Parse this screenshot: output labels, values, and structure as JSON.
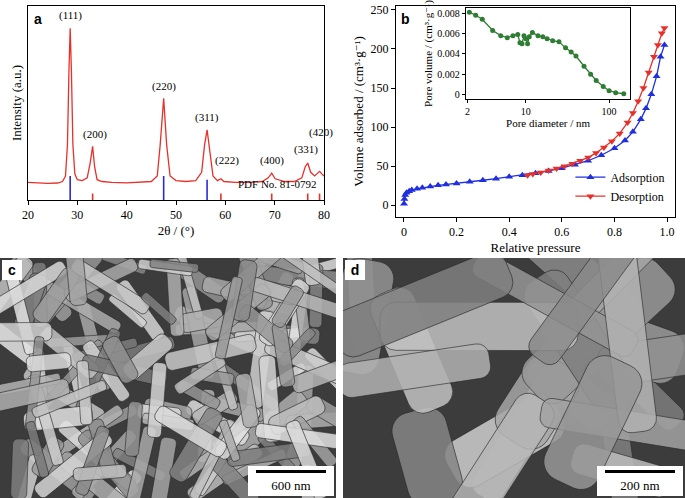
{
  "chart_data": [
    {
      "type": "line",
      "panel_label": "a",
      "x_label": "2θ / (°)",
      "y_label": "Intensity (a.u.)",
      "xlim": [
        20,
        80
      ],
      "xticks": [
        20,
        30,
        40,
        50,
        60,
        70,
        80
      ],
      "ylim": [
        0,
        105
      ],
      "tick_labels": "x",
      "grid": false,
      "series": [
        {
          "type": "line",
          "color": "#e8302a",
          "x": [
            20,
            22,
            24,
            26,
            27,
            27.6,
            28,
            28.3,
            28.55,
            28.8,
            29.1,
            29.5,
            30,
            31,
            32,
            32.6,
            33.1,
            33.5,
            34,
            35,
            37,
            40,
            43,
            45,
            46.2,
            46.8,
            47.5,
            48.1,
            48.8,
            50,
            52,
            54,
            55.2,
            55.8,
            56.3,
            56.9,
            57.5,
            58.4,
            59.1,
            59.7,
            62,
            65,
            67.5,
            68.7,
            69.4,
            70.1,
            72,
            74,
            75.5,
            76.2,
            76.7,
            77.3,
            78.1,
            78.5,
            79.1,
            79.6,
            80
          ],
          "values": [
            9.5,
            9.2,
            9.0,
            9.2,
            10,
            13,
            30,
            70,
            93,
            70,
            30,
            14,
            11,
            10.5,
            12,
            20,
            29,
            18,
            11,
            10,
            9.5,
            9.3,
            9.5,
            10,
            13,
            30,
            55,
            30,
            13,
            10.5,
            10,
            10.5,
            15,
            30,
            38,
            25,
            13,
            10.5,
            11.5,
            10,
            9.5,
            9.5,
            10,
            12,
            14.5,
            11.5,
            10,
            10,
            12,
            18,
            20,
            15,
            13,
            14,
            15.5,
            14,
            13
          ]
        },
        {
          "type": "stick",
          "x": [
            28.55,
            33.1,
            47.5,
            56.3,
            59.1,
            69.4,
            76.7,
            79.1
          ],
          "values": [
            13,
            3.5,
            13,
            11,
            3.5,
            3.5,
            3.5,
            3.5
          ],
          "colors": [
            "#2b2bd9",
            "#e8302a",
            "#2b2bd9",
            "#2b2bd9",
            "#e8302a",
            "#e8302a",
            "#e8302a",
            "#e8302a"
          ]
        }
      ],
      "annotations": [
        {
          "text": "(111)",
          "x": 28.55,
          "y": 95.5
        },
        {
          "text": "(200)",
          "x": 33.6,
          "y": 31
        },
        {
          "text": "(220)",
          "x": 47.5,
          "y": 57
        },
        {
          "text": "(311)",
          "x": 56.3,
          "y": 40
        },
        {
          "text": "(222)",
          "x": 60.3,
          "y": 17
        },
        {
          "text": "(400)",
          "x": 69.4,
          "y": 17
        },
        {
          "text": "(331)",
          "x": 76.3,
          "y": 23
        },
        {
          "text": "(420)",
          "x": 79.3,
          "y": 32
        },
        {
          "text": "PDF No. 81-0792",
          "x": 70.5,
          "y": 4.5
        }
      ]
    },
    {
      "type": "line",
      "panel_label": "b",
      "x_label": "Relative pressure",
      "y_label": "Volume adsorbed / (cm³·g⁻¹)",
      "xlim": [
        -0.03,
        1.03
      ],
      "xticks": [
        0,
        0.2,
        0.4,
        0.6,
        0.8,
        {
          "value": 1,
          "label": "1.0"
        }
      ],
      "ylim": [
        -15,
        255
      ],
      "yticks": [
        0,
        50,
        100,
        150,
        200,
        250
      ],
      "grid": false,
      "legend": "lower right",
      "series": [
        {
          "name": "Adsorption",
          "color": "#1f2fe0",
          "marker": "triangle-up",
          "line_style": "solid",
          "x": [
            0.0005,
            0.002,
            0.005,
            0.01,
            0.02,
            0.03,
            0.05,
            0.07,
            0.1,
            0.13,
            0.16,
            0.2,
            0.25,
            0.3,
            0.35,
            0.4,
            0.45,
            0.5,
            0.55,
            0.6,
            0.65,
            0.7,
            0.75,
            0.8,
            0.84,
            0.87,
            0.9,
            0.92,
            0.94,
            0.96,
            0.975,
            0.99
          ],
          "values": [
            2,
            8,
            13,
            16,
            18,
            19.5,
            21,
            22.5,
            24,
            25.5,
            26.5,
            28,
            30,
            32,
            34,
            36.5,
            38.5,
            41,
            44,
            47.5,
            52,
            57,
            64,
            73,
            83,
            94,
            110,
            124,
            142,
            165,
            190,
            205
          ]
        },
        {
          "name": "Desorption",
          "color": "#e8302a",
          "marker": "triangle-down",
          "line_style": "solid",
          "x": [
            0.99,
            0.98,
            0.965,
            0.95,
            0.93,
            0.91,
            0.89,
            0.87,
            0.85,
            0.82,
            0.79,
            0.76,
            0.73,
            0.7,
            0.67,
            0.64,
            0.61,
            0.58,
            0.55,
            0.52,
            0.49,
            0.47
          ],
          "values": [
            227,
            220,
            205,
            190,
            170,
            150,
            133,
            118,
            106,
            92,
            82,
            74,
            67,
            61,
            57,
            53,
            50,
            47,
            44.5,
            42,
            40,
            38.5
          ]
        }
      ]
    },
    {
      "type": "line",
      "x_label": "Pore diameter / nm",
      "y_label": "Pore volume / (cm³·g⁻¹)",
      "log": "x",
      "xlim": [
        1.9,
        180
      ],
      "xticks": [
        2,
        10,
        100
      ],
      "ylim": [
        -0.0004,
        0.0085
      ],
      "yticks": [
        0,
        0.002,
        0.004,
        0.006,
        0.008
      ],
      "grid": false,
      "series": [
        {
          "color": "#2e7d32",
          "marker": "circle",
          "line_style": "solid",
          "x": [
            2.1,
            2.5,
            3,
            4,
            5,
            6,
            7,
            8,
            8.5,
            9,
            9.5,
            10,
            10.5,
            11,
            12,
            14,
            16,
            18,
            21,
            25,
            30,
            35,
            40,
            50,
            60,
            70,
            85,
            100,
            120,
            150
          ],
          "values": [
            0.0081,
            0.0078,
            0.0074,
            0.0063,
            0.0058,
            0.0056,
            0.0058,
            0.0059,
            0.0051,
            0.005,
            0.0058,
            0.0055,
            0.005,
            0.0057,
            0.0061,
            0.0058,
            0.0057,
            0.0055,
            0.0053,
            0.0052,
            0.0046,
            0.0042,
            0.0038,
            0.0028,
            0.002,
            0.0014,
            0.0008,
            0.0004,
            0.0002,
            0.0001
          ]
        }
      ]
    }
  ],
  "images": [
    {
      "panel_label": "c",
      "scale_bar": "600 nm"
    },
    {
      "panel_label": "d",
      "scale_bar": "200 nm"
    }
  ]
}
